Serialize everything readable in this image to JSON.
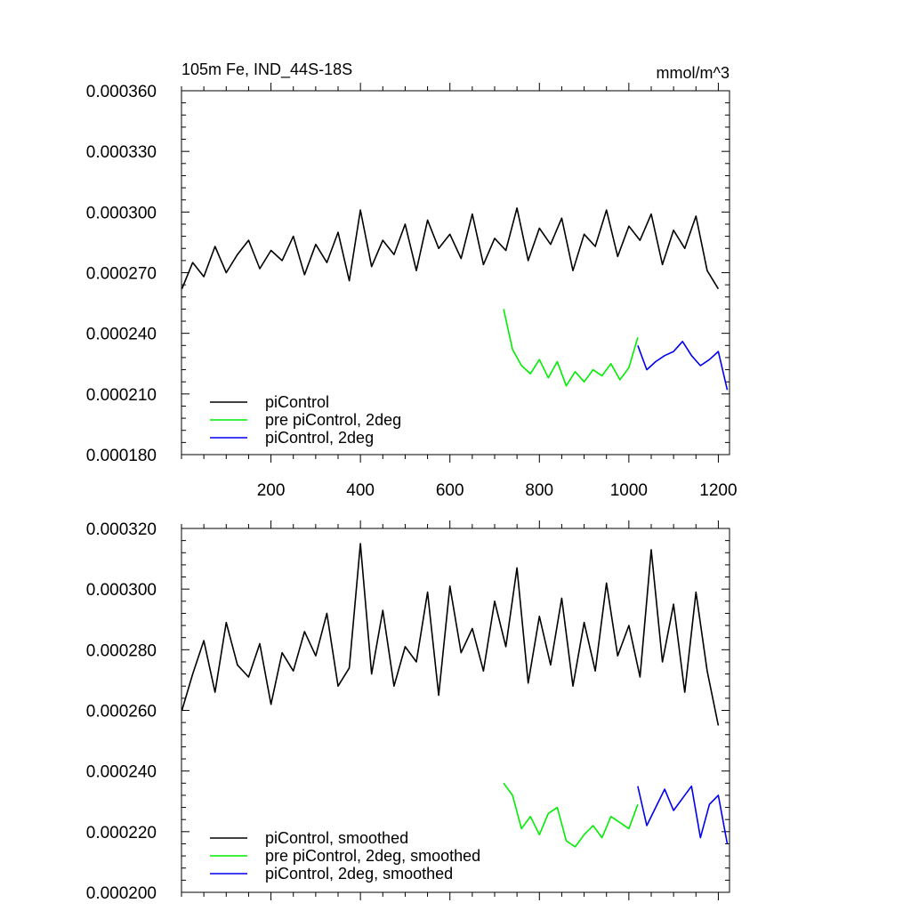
{
  "chart_data": [
    {
      "type": "line",
      "title": "105m Fe, IND_44S-18S",
      "units": "mmol/m^3",
      "xlabel": "",
      "ylabel": "",
      "xlim": [
        0,
        1225
      ],
      "ylim": [
        0.00018,
        0.00036
      ],
      "x_ticks": [
        200,
        400,
        600,
        800,
        1000,
        1200
      ],
      "x_tick_labels": [
        "200",
        "400",
        "600",
        "800",
        "1000",
        "1200"
      ],
      "y_ticks": [
        0.00018,
        0.00021,
        0.00024,
        0.00027,
        0.0003,
        0.00033,
        0.00036
      ],
      "y_tick_labels": [
        "0.000180",
        "0.000210",
        "0.000240",
        "0.000270",
        "0.000300",
        "0.000330",
        "0.000360"
      ],
      "grid": false,
      "legend_position": "bottom-left",
      "series": [
        {
          "name": "piControl",
          "color": "#000000",
          "x": [
            1,
            25,
            50,
            75,
            100,
            125,
            150,
            175,
            200,
            225,
            250,
            275,
            300,
            325,
            350,
            375,
            400,
            425,
            450,
            475,
            500,
            525,
            550,
            575,
            600,
            625,
            650,
            675,
            700,
            725,
            750,
            775,
            800,
            825,
            850,
            875,
            900,
            925,
            950,
            975,
            1000,
            1025,
            1050,
            1075,
            1100,
            1125,
            1150,
            1175,
            1200
          ],
          "values": [
            0.000262,
            0.000275,
            0.000268,
            0.000283,
            0.00027,
            0.000279,
            0.000286,
            0.000272,
            0.000281,
            0.000276,
            0.000288,
            0.000269,
            0.000284,
            0.000275,
            0.00029,
            0.000266,
            0.000301,
            0.000273,
            0.000286,
            0.000279,
            0.000294,
            0.000271,
            0.000296,
            0.000282,
            0.000289,
            0.000277,
            0.000299,
            0.000274,
            0.000287,
            0.000281,
            0.000302,
            0.000276,
            0.000292,
            0.000284,
            0.000297,
            0.000271,
            0.000289,
            0.000283,
            0.000301,
            0.000278,
            0.000293,
            0.000286,
            0.000299,
            0.000274,
            0.000291,
            0.000282,
            0.000298,
            0.000271,
            0.000262
          ]
        },
        {
          "name": "pre piControl, 2deg",
          "color": "#00ee00",
          "x": [
            720,
            740,
            760,
            780,
            800,
            820,
            840,
            860,
            880,
            900,
            920,
            940,
            960,
            980,
            1000,
            1020
          ],
          "values": [
            0.000252,
            0.000232,
            0.000224,
            0.00022,
            0.000227,
            0.000218,
            0.000226,
            0.000214,
            0.000221,
            0.000216,
            0.000222,
            0.000219,
            0.000225,
            0.000217,
            0.000223,
            0.000238
          ]
        },
        {
          "name": "piControl, 2deg",
          "color": "#0000ee",
          "x": [
            1020,
            1040,
            1060,
            1080,
            1100,
            1120,
            1140,
            1160,
            1180,
            1200,
            1220
          ],
          "values": [
            0.000234,
            0.000222,
            0.000226,
            0.000229,
            0.000231,
            0.000236,
            0.000229,
            0.000224,
            0.000227,
            0.000231,
            0.000212
          ]
        }
      ]
    },
    {
      "type": "line",
      "title": "",
      "xlabel": "",
      "ylabel": "",
      "xlim": [
        0,
        1225
      ],
      "ylim": [
        0.0002,
        0.00032
      ],
      "y_ticks": [
        0.0002,
        0.00022,
        0.00024,
        0.00026,
        0.00028,
        0.0003,
        0.00032
      ],
      "y_tick_labels": [
        "0.000200",
        "0.000220",
        "0.000240",
        "0.000260",
        "0.000280",
        "0.000300",
        "0.000320"
      ],
      "grid": false,
      "legend_position": "bottom-left",
      "series": [
        {
          "name": "piControl, smoothed",
          "color": "#000000",
          "x": [
            1,
            25,
            50,
            75,
            100,
            125,
            150,
            175,
            200,
            225,
            250,
            275,
            300,
            325,
            350,
            375,
            400,
            425,
            450,
            475,
            500,
            525,
            550,
            575,
            600,
            625,
            650,
            675,
            700,
            725,
            750,
            775,
            800,
            825,
            850,
            875,
            900,
            925,
            950,
            975,
            1000,
            1025,
            1050,
            1075,
            1100,
            1125,
            1150,
            1175,
            1200
          ],
          "values": [
            0.00026,
            0.000272,
            0.000283,
            0.000266,
            0.000289,
            0.000275,
            0.000271,
            0.000282,
            0.000262,
            0.000279,
            0.000273,
            0.000286,
            0.000278,
            0.000292,
            0.000268,
            0.000274,
            0.000315,
            0.000272,
            0.000293,
            0.000268,
            0.000281,
            0.000276,
            0.000299,
            0.000265,
            0.000301,
            0.000279,
            0.000287,
            0.000273,
            0.000296,
            0.000281,
            0.000307,
            0.000269,
            0.000291,
            0.000275,
            0.000297,
            0.000268,
            0.000289,
            0.000273,
            0.000302,
            0.000278,
            0.000288,
            0.000271,
            0.000313,
            0.000276,
            0.000295,
            0.000266,
            0.000299,
            0.000273,
            0.000255
          ]
        },
        {
          "name": "pre piControl, 2deg, smoothed",
          "color": "#00ee00",
          "x": [
            720,
            740,
            760,
            780,
            800,
            820,
            840,
            860,
            880,
            900,
            920,
            940,
            960,
            980,
            1000,
            1020
          ],
          "values": [
            0.000236,
            0.000232,
            0.000221,
            0.000225,
            0.000219,
            0.000226,
            0.000228,
            0.000217,
            0.000215,
            0.000219,
            0.000222,
            0.000218,
            0.000225,
            0.000223,
            0.000221,
            0.000229
          ]
        },
        {
          "name": "piControl, 2deg, smoothed",
          "color": "#0000ee",
          "x": [
            1020,
            1040,
            1060,
            1080,
            1100,
            1120,
            1140,
            1160,
            1180,
            1200,
            1220
          ],
          "values": [
            0.000235,
            0.000222,
            0.000228,
            0.000234,
            0.000227,
            0.000231,
            0.000235,
            0.000218,
            0.000229,
            0.000232,
            0.000216
          ]
        }
      ]
    }
  ]
}
